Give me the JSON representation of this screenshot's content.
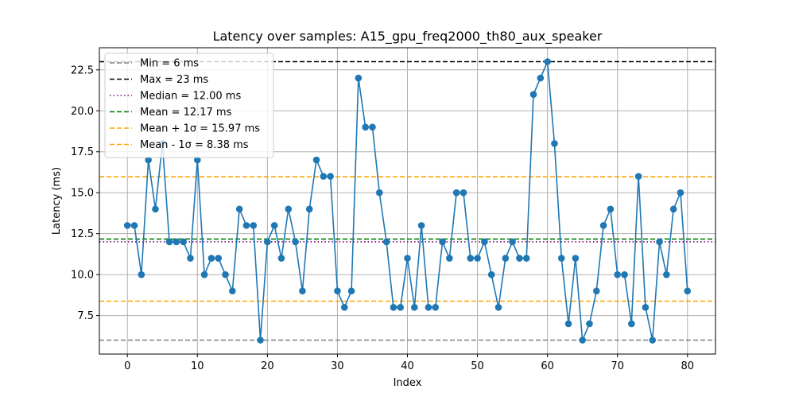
{
  "chart_data": {
    "type": "line",
    "title": "Latency over samples: A15_gpu_freq2000_th80_aux_speaker",
    "xlabel": "Index",
    "ylabel": "Latency (ms)",
    "xlim": [
      -4,
      84
    ],
    "ylim": [
      5.15,
      23.85
    ],
    "x_ticks": [
      0,
      10,
      20,
      30,
      40,
      50,
      60,
      70,
      80
    ],
    "y_ticks": [
      7.5,
      10.0,
      12.5,
      15.0,
      17.5,
      20.0,
      22.5
    ],
    "x_tick_labels": [
      "0",
      "10",
      "20",
      "30",
      "40",
      "50",
      "60",
      "70",
      "80"
    ],
    "y_tick_labels": [
      "7.5",
      "10.0",
      "12.5",
      "15.0",
      "17.5",
      "20.0",
      "22.5"
    ],
    "grid": true,
    "legend_position": "top-left",
    "series": [
      {
        "name": "",
        "color": "#1f77b4",
        "marker": "circle",
        "values": [
          13,
          13,
          10,
          17,
          14,
          18,
          12,
          12,
          12,
          11,
          17,
          10,
          11,
          11,
          10,
          9,
          14,
          13,
          13,
          6,
          12,
          13,
          11,
          14,
          12,
          9,
          14,
          17,
          16,
          16,
          9,
          8,
          9,
          22,
          19,
          19,
          15,
          12,
          8,
          8,
          11,
          8,
          13,
          8,
          8,
          12,
          11,
          15,
          15,
          11,
          11,
          12,
          10,
          8,
          11,
          12,
          11,
          11,
          21,
          22,
          23,
          18,
          11,
          7,
          11,
          6,
          7,
          9,
          13,
          14,
          10,
          10,
          7,
          16,
          8,
          6,
          12,
          10,
          14,
          15,
          9
        ]
      }
    ],
    "reference_lines": [
      {
        "label": "Min = 6 ms",
        "value": 6,
        "color": "#808080",
        "style": "dashed"
      },
      {
        "label": "Max = 23 ms",
        "value": 23,
        "color": "#000000",
        "style": "dashed"
      },
      {
        "label": "Median = 12.00 ms",
        "value": 12.0,
        "color": "#800080",
        "style": "dotted"
      },
      {
        "label": "Mean = 12.17 ms",
        "value": 12.17,
        "color": "#008000",
        "style": "dashed"
      },
      {
        "label": "Mean + 1σ = 15.97 ms",
        "value": 15.97,
        "color": "#ffa500",
        "style": "dashed"
      },
      {
        "label": "Mean - 1σ = 8.38 ms",
        "value": 8.38,
        "color": "#ffa500",
        "style": "dashed"
      }
    ]
  }
}
